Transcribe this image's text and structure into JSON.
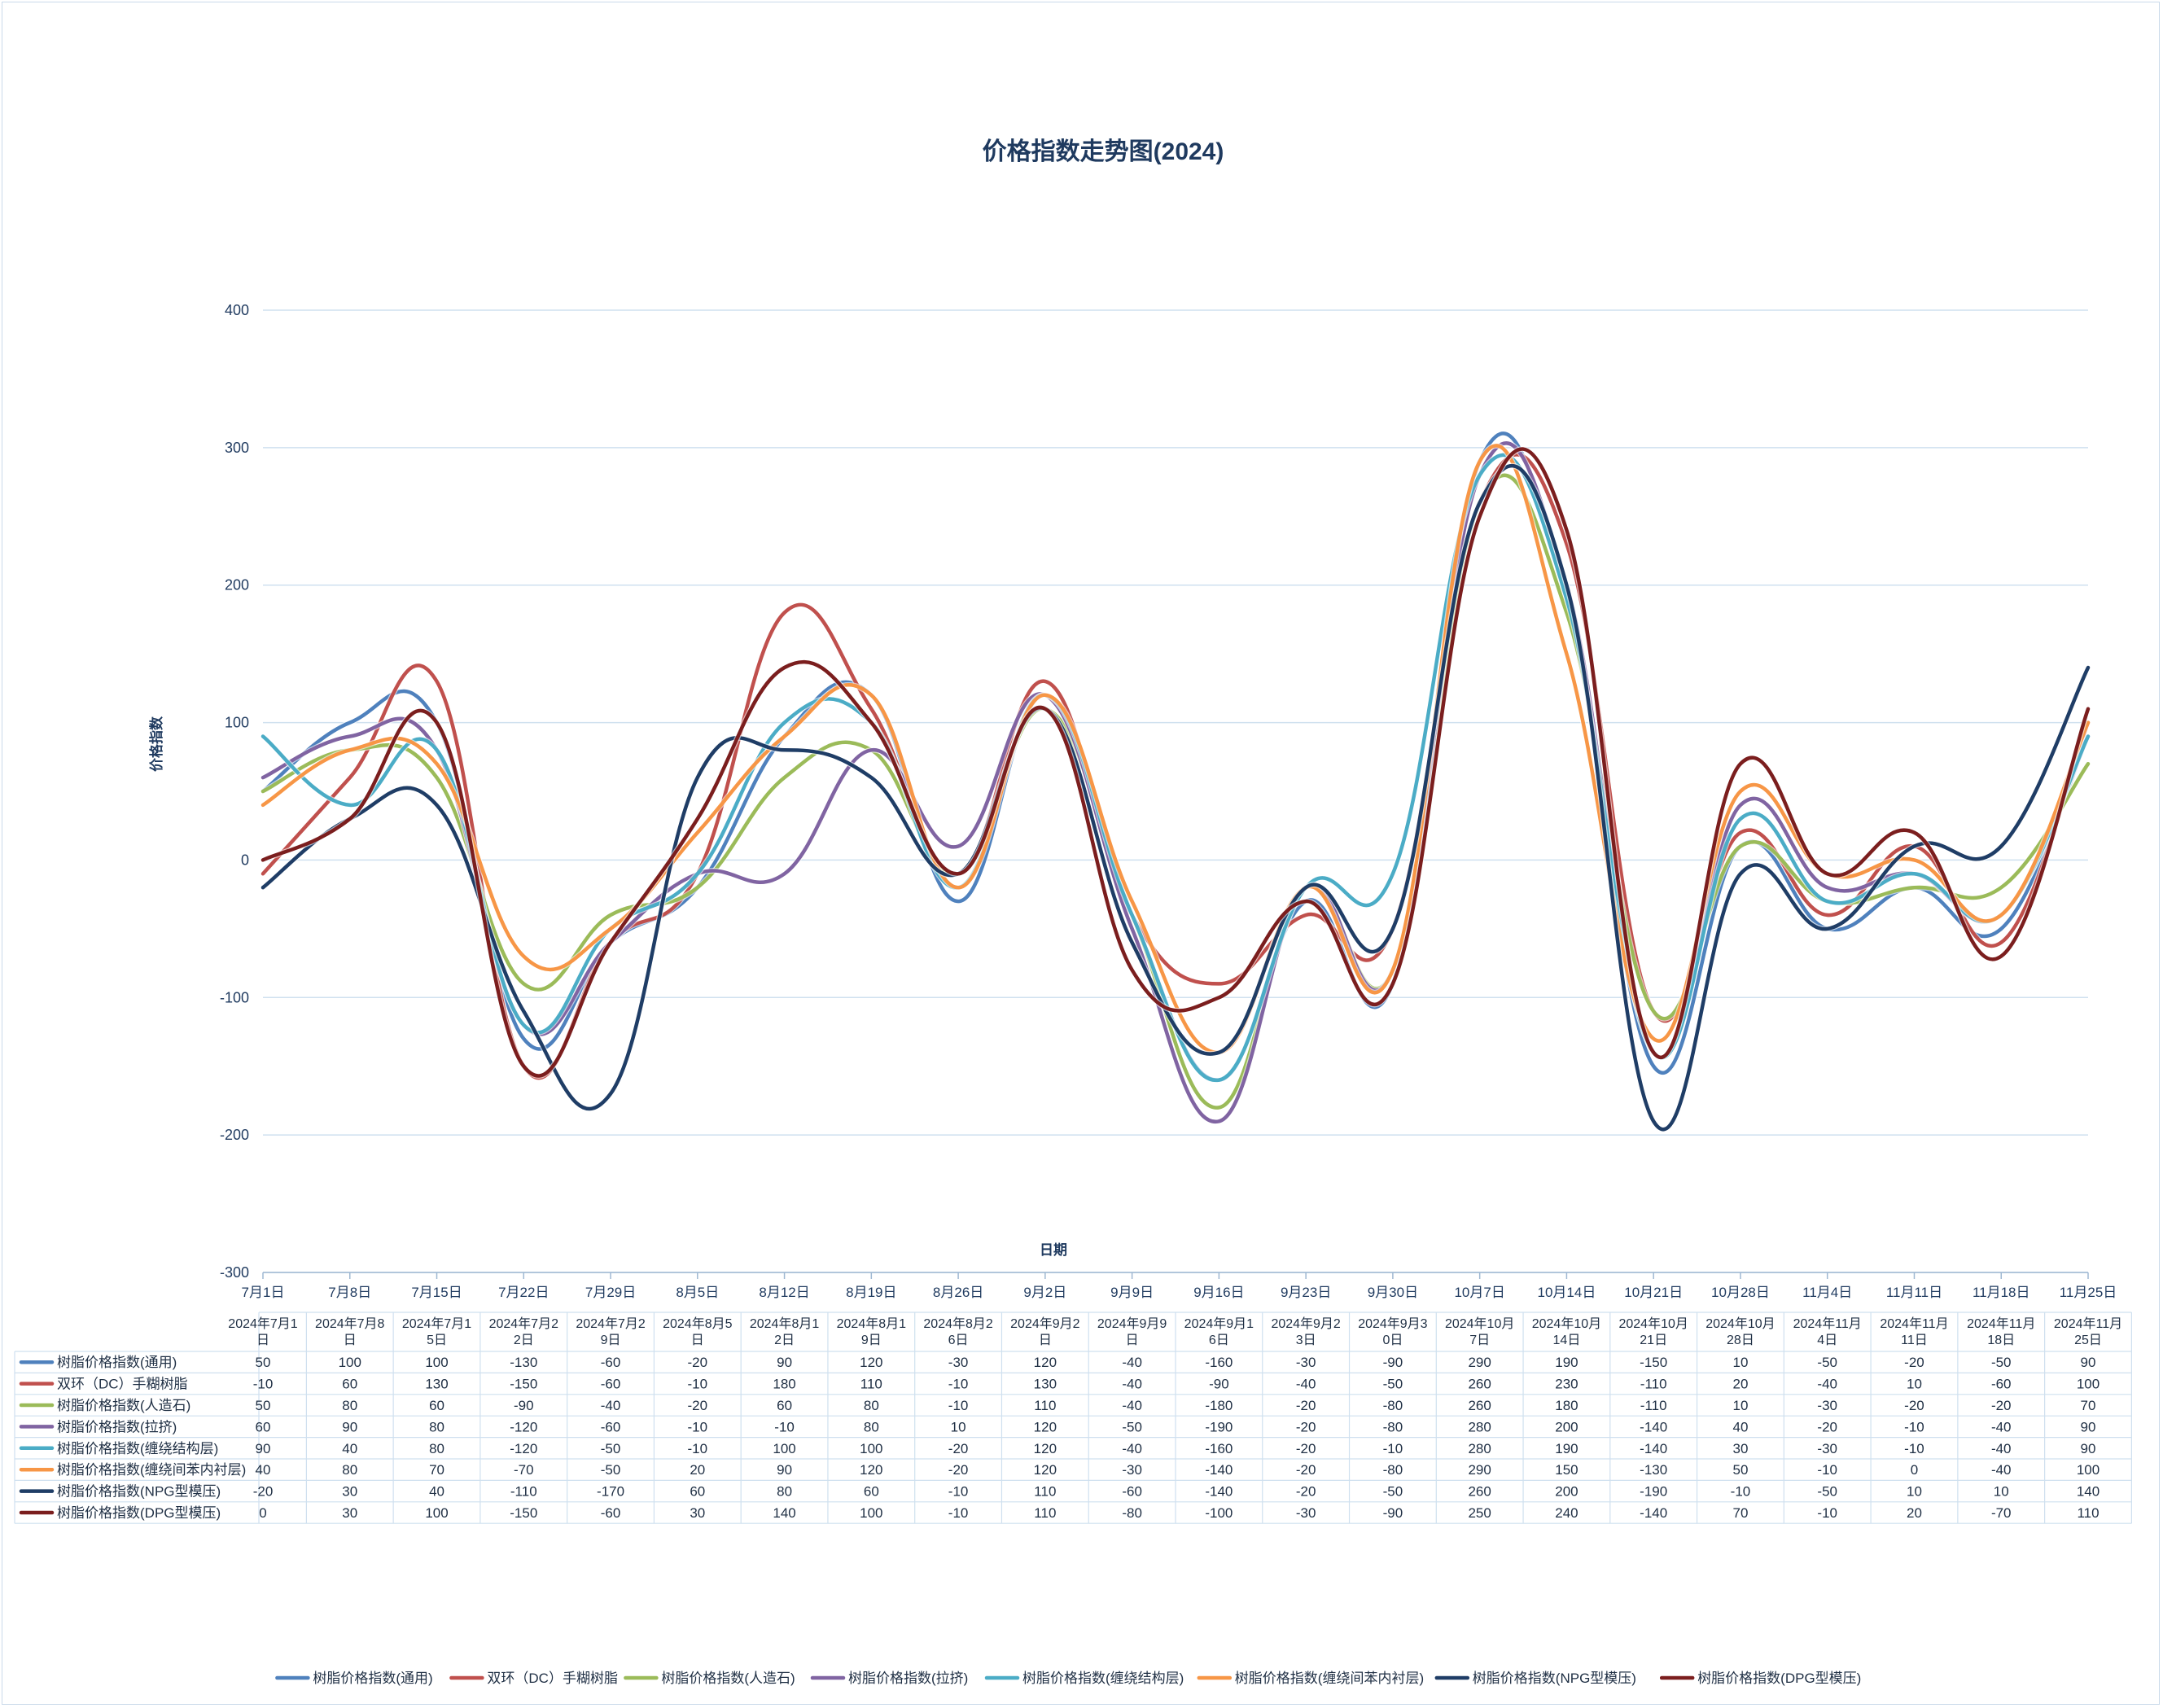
{
  "chart_data": {
    "type": "line",
    "title": "价格指数走势图(2024)",
    "xlabel": "日期",
    "ylabel": "价格指数",
    "ylim": [
      -300,
      400
    ],
    "yticks": [
      "400",
      "300",
      "200",
      "100",
      "0",
      "-100",
      "-200",
      "-300"
    ],
    "yticks_values": [
      400,
      300,
      200,
      100,
      0,
      -100,
      -200,
      -300
    ],
    "grid": true,
    "smooth": true,
    "legend_position": "bottom",
    "x_axis_labels": [
      "7月1日",
      "7月8日",
      "7月15日",
      "7月22日",
      "7月29日",
      "8月5日",
      "8月12日",
      "8月19日",
      "8月26日",
      "9月2日",
      "9月9日",
      "9月16日",
      "9月23日",
      "9月30日",
      "10月7日",
      "10月14日",
      "10月21日",
      "10月28日",
      "11月4日",
      "11月11日",
      "11月18日",
      "11月25日"
    ],
    "table_headers": [
      [
        "2024年7月1",
        "日"
      ],
      [
        "2024年7月8",
        "日"
      ],
      [
        "2024年7月1",
        "5日"
      ],
      [
        "2024年7月2",
        "2日"
      ],
      [
        "2024年7月2",
        "9日"
      ],
      [
        "2024年8月5",
        "日"
      ],
      [
        "2024年8月1",
        "2日"
      ],
      [
        "2024年8月1",
        "9日"
      ],
      [
        "2024年8月2",
        "6日"
      ],
      [
        "2024年9月2",
        "日"
      ],
      [
        "2024年9月9",
        "日"
      ],
      [
        "2024年9月1",
        "6日"
      ],
      [
        "2024年9月2",
        "3日"
      ],
      [
        "2024年9月3",
        "0日"
      ],
      [
        "2024年10月",
        "7日"
      ],
      [
        "2024年10月",
        "14日"
      ],
      [
        "2024年10月",
        "21日"
      ],
      [
        "2024年10月",
        "28日"
      ],
      [
        "2024年11月",
        "4日"
      ],
      [
        "2024年11月",
        "11日"
      ],
      [
        "2024年11月",
        "18日"
      ],
      [
        "2024年11月",
        "25日"
      ]
    ],
    "series": [
      {
        "name": "树脂价格指数(通用)",
        "color": "#4f81bd",
        "values": [
          50,
          100,
          100,
          -130,
          -60,
          -20,
          90,
          120,
          -30,
          120,
          -40,
          -160,
          -30,
          -90,
          290,
          190,
          -150,
          10,
          -50,
          -20,
          -50,
          90
        ]
      },
      {
        "name": "双环（DC）手糊树脂",
        "color": "#c0504d",
        "values": [
          -10,
          60,
          130,
          -150,
          -60,
          -10,
          180,
          110,
          -10,
          130,
          -40,
          -90,
          -40,
          -50,
          260,
          230,
          -110,
          20,
          -40,
          10,
          -60,
          100
        ]
      },
      {
        "name": "树脂价格指数(人造石)",
        "color": "#9bbb59",
        "values": [
          50,
          80,
          60,
          -90,
          -40,
          -20,
          60,
          80,
          -10,
          110,
          -40,
          -180,
          -20,
          -80,
          260,
          180,
          -110,
          10,
          -30,
          -20,
          -20,
          70
        ]
      },
      {
        "name": "树脂价格指数(拉挤)",
        "color": "#8064a2",
        "values": [
          60,
          90,
          80,
          -120,
          -60,
          -10,
          -10,
          80,
          10,
          120,
          -50,
          -190,
          -20,
          -80,
          280,
          200,
          -140,
          40,
          -20,
          -10,
          -40,
          90
        ]
      },
      {
        "name": "树脂价格指数(缠绕结构层)",
        "color": "#4bacc6",
        "values": [
          90,
          40,
          80,
          -120,
          -50,
          -10,
          100,
          100,
          -20,
          120,
          -40,
          -160,
          -20,
          -10,
          280,
          190,
          -140,
          30,
          -30,
          -10,
          -40,
          90
        ]
      },
      {
        "name": "树脂价格指数(缠绕间苯内衬层)",
        "color": "#f79646",
        "values": [
          40,
          80,
          70,
          -70,
          -50,
          20,
          90,
          120,
          -20,
          120,
          -30,
          -140,
          -20,
          -80,
          290,
          150,
          -130,
          50,
          -10,
          0,
          -40,
          100
        ]
      },
      {
        "name": "树脂价格指数(NPG型模压)",
        "color": "#1f3d66",
        "values": [
          -20,
          30,
          40,
          -110,
          -170,
          60,
          80,
          60,
          -10,
          110,
          -60,
          -140,
          -20,
          -50,
          260,
          200,
          -190,
          -10,
          -50,
          10,
          10,
          140
        ]
      },
      {
        "name": "树脂价格指数(DPG型模压)",
        "color": "#7b1e1e",
        "values": [
          0,
          30,
          100,
          -150,
          -60,
          30,
          140,
          100,
          -10,
          110,
          -80,
          -100,
          -30,
          -90,
          250,
          240,
          -140,
          70,
          -10,
          20,
          -70,
          110
        ]
      }
    ]
  }
}
